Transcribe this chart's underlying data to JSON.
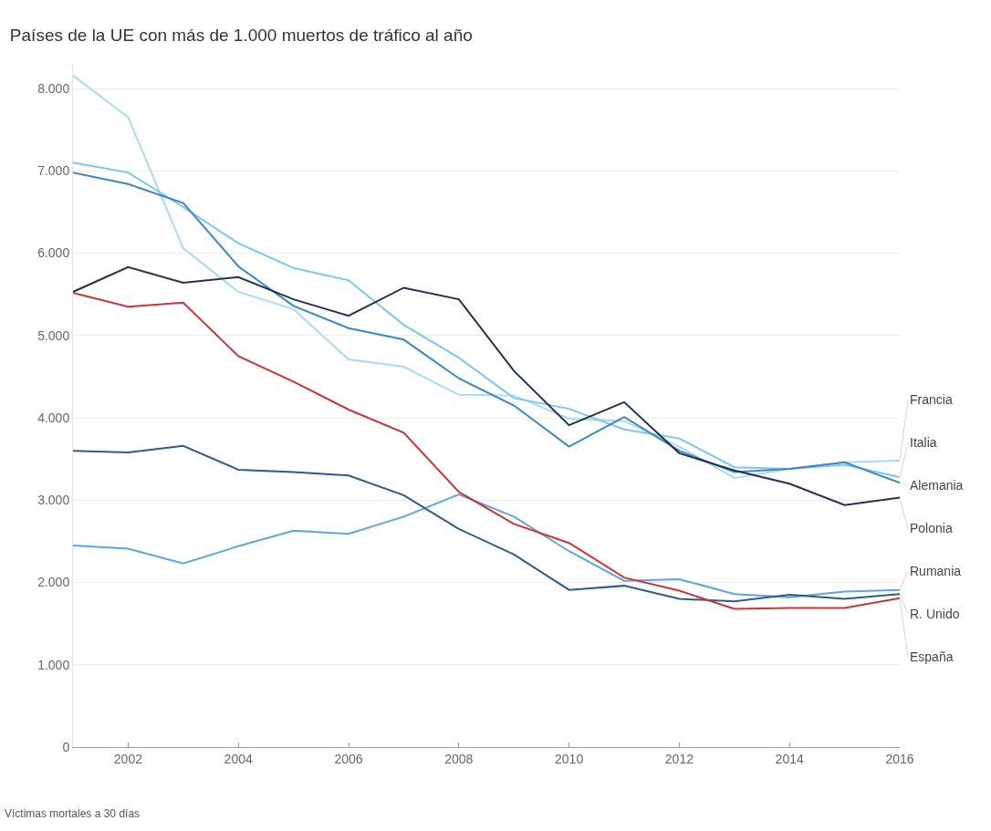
{
  "chart_data": {
    "type": "line",
    "title": "Países de la UE con más de 1.000 muertos de tráfico al año",
    "x": [
      2001,
      2002,
      2003,
      2004,
      2005,
      2006,
      2007,
      2008,
      2009,
      2010,
      2011,
      2012,
      2013,
      2014,
      2015,
      2016
    ],
    "series": [
      {
        "name": "Francia",
        "color": "#a9dcf3",
        "values": [
          8160,
          7650,
          6060,
          5530,
          5320,
          4710,
          4620,
          4280,
          4270,
          3990,
          3960,
          3650,
          3270,
          3380,
          3460,
          3480
        ]
      },
      {
        "name": "Italia",
        "color": "#7cc6ee",
        "values": [
          7100,
          6980,
          6560,
          6120,
          5820,
          5670,
          5130,
          4730,
          4240,
          4110,
          3860,
          3750,
          3400,
          3380,
          3430,
          3280
        ]
      },
      {
        "name": "Alemania",
        "color": "#3b87c2",
        "values": [
          6980,
          6840,
          6610,
          5840,
          5360,
          5090,
          4950,
          4480,
          4150,
          3650,
          4010,
          3600,
          3340,
          3380,
          3460,
          3210
        ]
      },
      {
        "name": "Polonia",
        "color": "#22324f",
        "values": [
          5530,
          5830,
          5640,
          5710,
          5440,
          5240,
          5580,
          5440,
          4570,
          3910,
          4190,
          3570,
          3360,
          3200,
          2940,
          3030
        ]
      },
      {
        "name": "Rumania",
        "color": "#5ea6dc",
        "values": [
          2450,
          2410,
          2230,
          2440,
          2630,
          2590,
          2800,
          3070,
          2800,
          2380,
          2020,
          2040,
          1860,
          1820,
          1890,
          1910
        ]
      },
      {
        "name": "R. Unido",
        "color": "#2c5d87",
        "values": [
          3600,
          3580,
          3660,
          3370,
          3340,
          3300,
          3060,
          2650,
          2340,
          1910,
          1960,
          1800,
          1770,
          1850,
          1800,
          1860
        ]
      },
      {
        "name": "España",
        "color": "#c9363a",
        "values": [
          5520,
          5350,
          5400,
          4750,
          4440,
          4100,
          3820,
          3100,
          2710,
          2480,
          2060,
          1900,
          1680,
          1690,
          1690,
          1810
        ]
      }
    ],
    "xlim": [
      2001,
      2016
    ],
    "xticks": [
      2002,
      2004,
      2006,
      2008,
      2010,
      2012,
      2014,
      2016
    ],
    "ylim": [
      0,
      8300
    ],
    "yticks": [
      0,
      {
        "value": 1000,
        "label": "1.000"
      },
      {
        "value": 2000,
        "label": "2.000"
      },
      {
        "value": 3000,
        "label": "3.000"
      },
      {
        "value": 4000,
        "label": "4.000"
      },
      {
        "value": 5000,
        "label": "5.000"
      },
      {
        "value": 6000,
        "label": "6.000"
      },
      {
        "value": 7000,
        "label": "7.000"
      },
      {
        "value": 8000,
        "label": "8.000"
      }
    ],
    "grid": "y",
    "legend": false,
    "marker": "none",
    "line_style": "solid",
    "annotations": [
      "Víctimas mortales a 30 días"
    ]
  }
}
